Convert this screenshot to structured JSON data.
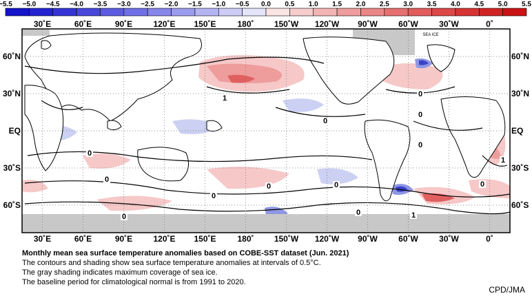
{
  "colorbar": {
    "labels": [
      "−5.5",
      "−5.0",
      "−4.5",
      "−4.0",
      "−3.5",
      "−3.0",
      "−2.5",
      "−2.0",
      "−1.5",
      "−1.0",
      "−0.5",
      "0.0",
      "0.5",
      "1.0",
      "1.5",
      "2.0",
      "2.5",
      "3.0",
      "3.5",
      "4.0",
      "4.5",
      "5.0",
      "5.5"
    ],
    "colors": [
      "#1414c8",
      "#2424d0",
      "#3434d6",
      "#4848dc",
      "#5c5ce2",
      "#7070e6",
      "#8686ea",
      "#9c9cee",
      "#b4b4f2",
      "#ccccf6",
      "#e4e4fa",
      "#fae4e4",
      "#f6cccc",
      "#f2b4b4",
      "#ee9c9c",
      "#ea8686",
      "#e67070",
      "#e25c5c",
      "#dc4848",
      "#d63434",
      "#d02424",
      "#c81414"
    ]
  },
  "map": {
    "lon_labels": [
      "30˚E",
      "60˚E",
      "90˚E",
      "120˚E",
      "150˚E",
      "180˚",
      "150˚W",
      "120˚W",
      "90˚W",
      "60˚W",
      "30˚W",
      "0˚"
    ],
    "lat_labels": [
      "60˚N",
      "30˚N",
      "EQ",
      "30˚S",
      "60˚S"
    ],
    "sea_ice_label": "SEA ICE",
    "contour_labels": [
      "0",
      "0",
      "0",
      "0",
      "0",
      "0",
      "0",
      "0",
      "0",
      "0",
      "1",
      "0",
      "0",
      "1",
      "1"
    ],
    "colors": {
      "land": "#ffffff",
      "ocean": "#ffffff",
      "sea_ice": "#c8c8c8",
      "coast": "#000000",
      "grid": "#666666"
    }
  },
  "caption": {
    "title": "Monthly mean sea surface temperature anomalies based on COBE-SST dataset (Jun. 2021)",
    "line1": "The contours and shading show sea surface temperature anomalies at intervals of 0.5°C.",
    "line2": "The gray shading indicates maximum coverage of sea ice.",
    "line3": "The baseline period for climatological normal is from 1991 to 2020."
  },
  "credit": "CPD/JMA"
}
